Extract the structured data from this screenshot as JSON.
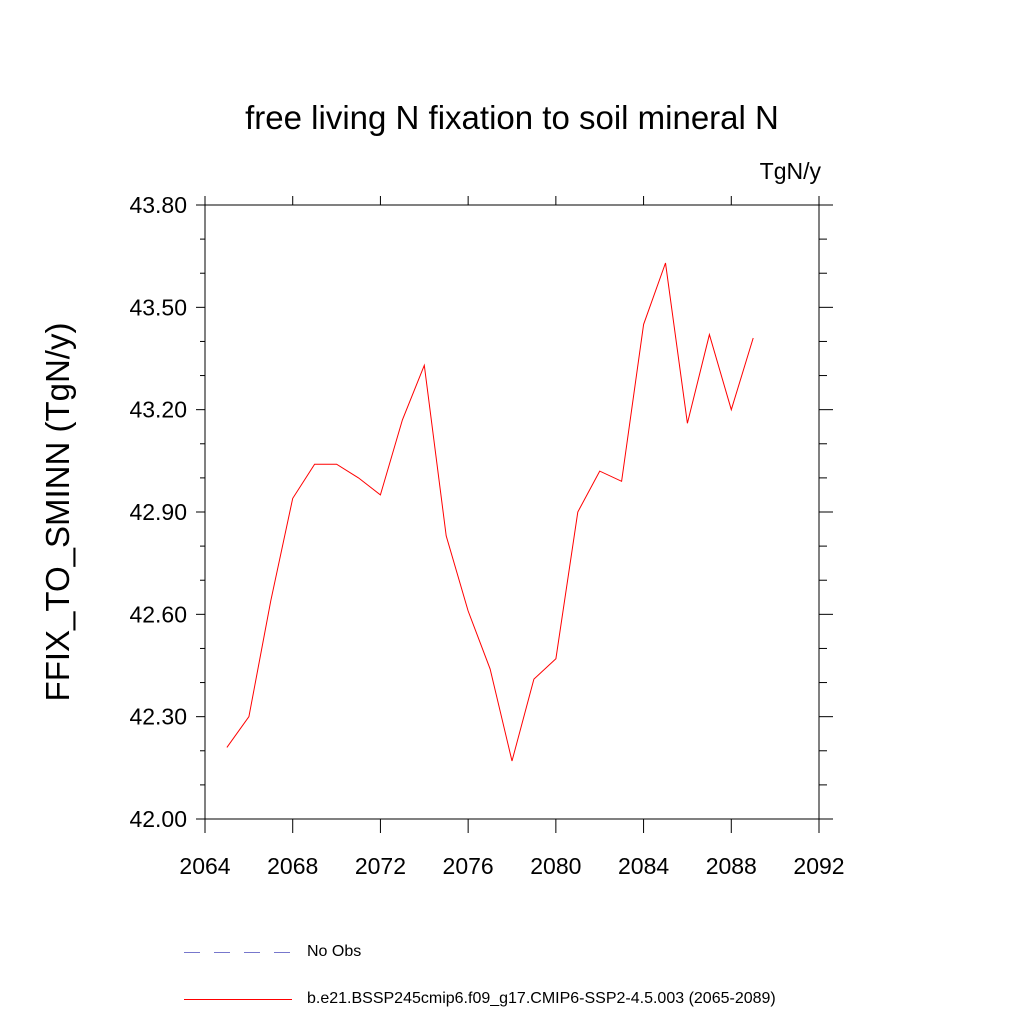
{
  "chart_data": {
    "type": "line",
    "title": "free living N fixation to soil mineral N",
    "units": "TgN/y",
    "ylabel": "FFIX_TO_SMINN  (TgN/y)",
    "xlabel": "",
    "xlim": [
      2064,
      2092
    ],
    "ylim": [
      42.0,
      43.8
    ],
    "xticks": [
      2064,
      2068,
      2072,
      2076,
      2080,
      2084,
      2088,
      2092
    ],
    "xtick_labels": [
      "2064",
      "2068",
      "2072",
      "2076",
      "2080",
      "2084",
      "2088",
      "2092"
    ],
    "yticks": [
      42.0,
      42.3,
      42.6,
      42.9,
      43.2,
      43.5,
      43.8
    ],
    "ytick_labels": [
      "42.00",
      "42.30",
      "42.60",
      "42.90",
      "43.20",
      "43.50",
      "43.80"
    ],
    "x_minor_step": 1,
    "y_minor_step": 0.1,
    "grid": false,
    "legend_position": "bottom",
    "series": [
      {
        "name": "b.e21.BSSP245cmip6.f09_g17.CMIP6-SSP2-4.5.003 (2065-2089)",
        "color": "#ff0000",
        "style": "solid",
        "x": [
          2065,
          2066,
          2067,
          2068,
          2069,
          2070,
          2071,
          2072,
          2073,
          2074,
          2075,
          2076,
          2077,
          2078,
          2079,
          2080,
          2081,
          2082,
          2083,
          2084,
          2085,
          2086,
          2087,
          2088,
          2089
        ],
        "y": [
          42.21,
          42.3,
          42.64,
          42.94,
          43.04,
          43.04,
          43.0,
          42.95,
          43.17,
          43.33,
          42.83,
          42.61,
          42.44,
          42.17,
          42.41,
          42.47,
          42.9,
          43.02,
          42.99,
          43.45,
          43.63,
          43.16,
          43.42,
          43.2,
          43.41
        ]
      }
    ]
  },
  "legend": [
    {
      "label": "No Obs",
      "color": "#7777cc",
      "style": "dashed"
    },
    {
      "label": "b.e21.BSSP245cmip6.f09_g17.CMIP6-SSP2-4.5.003 (2065-2089)",
      "color": "#ff0000",
      "style": "solid"
    }
  ]
}
